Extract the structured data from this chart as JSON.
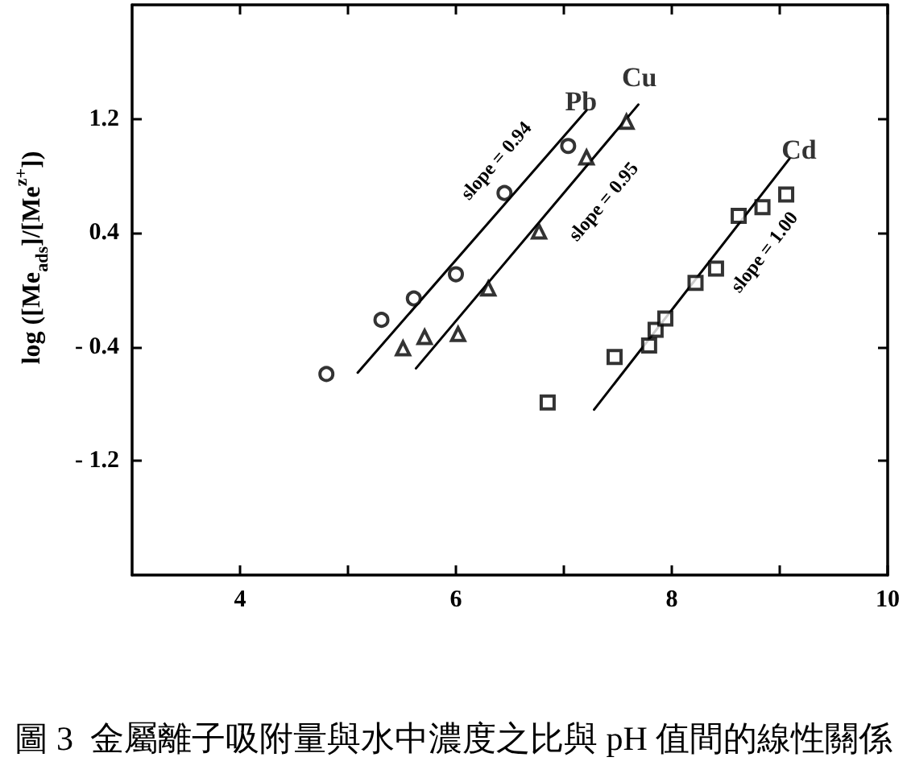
{
  "chart_data": {
    "type": "scatter",
    "ylabel": "log ([Me$_{ads}$]/[Me$^{z+}$])",
    "xlim": [
      3,
      10
    ],
    "xticks": [
      4,
      {
        "value": 5,
        "label": null
      },
      6,
      {
        "value": 7,
        "label": null
      },
      8,
      {
        "value": 9,
        "label": null
      },
      10
    ],
    "ylim": [
      -2,
      2
    ],
    "yticks": [
      {
        "value": -1.2,
        "label": "- 1.2"
      },
      {
        "value": -0.4,
        "label": "- 0.4"
      },
      0.4,
      1.2
    ],
    "series": [
      {
        "name": "Pb",
        "marker": "circle",
        "color": "#000000",
        "x": [
          4.8,
          5.31,
          5.61,
          6.0,
          6.45,
          7.04
        ],
        "values": [
          -0.59,
          -0.21,
          -0.06,
          0.11,
          0.68,
          1.01
        ]
      },
      {
        "name": "Cu",
        "marker": "triangle",
        "color": "#000000",
        "x": [
          5.51,
          5.71,
          6.02,
          6.3,
          6.77,
          7.21,
          7.58
        ],
        "values": [
          -0.41,
          -0.33,
          -0.31,
          0.01,
          0.41,
          0.93,
          1.18
        ]
      },
      {
        "name": "Cd",
        "marker": "square",
        "color": "#000000",
        "x": [
          6.85,
          7.47,
          7.79,
          7.85,
          7.94,
          8.22,
          8.41,
          8.62,
          8.84,
          9.06
        ],
        "values": [
          -0.79,
          -0.47,
          -0.39,
          -0.28,
          -0.2,
          0.05,
          0.15,
          0.52,
          0.58,
          0.67
        ]
      },
      {
        "type": "line",
        "marker": "none",
        "color": "#000000",
        "x": [
          5.09,
          7.21
        ],
        "values": [
          -0.58,
          1.26
        ]
      },
      {
        "type": "line",
        "marker": "none",
        "color": "#000000",
        "x": [
          5.63,
          7.69
        ],
        "values": [
          -0.55,
          1.3
        ]
      },
      {
        "type": "line",
        "marker": "none",
        "color": "#000000",
        "x": [
          7.28,
          9.09
        ],
        "values": [
          -0.84,
          0.92
        ]
      }
    ],
    "annotations": [
      "slope = 0.94",
      "slope = 0.95",
      "slope = 1.00",
      "圖 3  金屬離子吸附量與水中濃度之比與 pH 值間的線性關係"
    ]
  }
}
